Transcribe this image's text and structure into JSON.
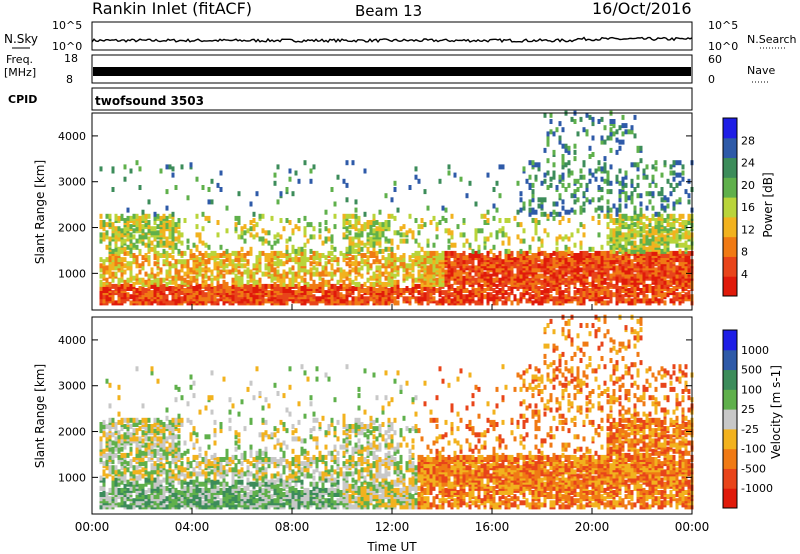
{
  "header": {
    "station": "Rankin Inlet (fitACF)",
    "beam": "Beam 13",
    "date": "16/Oct/2016"
  },
  "nsky_panel": {
    "label": "N.Sky",
    "left_ticks": [
      "10^5",
      "10^0"
    ],
    "right_ticks": [
      "10^5",
      "10^0"
    ],
    "right_label": "N.Search"
  },
  "freq_panel": {
    "label_line1": "Freq.",
    "label_line2": "[MHz]",
    "left_ticks": [
      "18",
      "8"
    ],
    "right_ticks": [
      "60",
      "0"
    ],
    "right_label": "Nave"
  },
  "cpid_panel": {
    "label": "CPID",
    "program": "twofsound 3503"
  },
  "colors": {
    "power_scale": [
      "#1e1ee6",
      "#2e5aa8",
      "#3c8c5a",
      "#5fb04b",
      "#b9d43a",
      "#f2b21e",
      "#f07a14",
      "#e8441a",
      "#e01a0a"
    ],
    "velocity_scale": [
      "#1e1ee6",
      "#2e5aa8",
      "#3c8c5a",
      "#5fb04b",
      "#c8c8c8",
      "#f2b21e",
      "#f07a14",
      "#e8441a",
      "#e01a0a"
    ]
  },
  "chart_data": [
    {
      "type": "heatmap",
      "name": "power",
      "ylabel": "Slant Range [km]",
      "ylim": [
        200,
        4500
      ],
      "yticks": [
        1000,
        2000,
        3000,
        4000
      ],
      "xlim": [
        0,
        24
      ],
      "colorbar": {
        "label": "Power [dB]",
        "ticks": [
          "28",
          "24",
          "20",
          "16",
          "12",
          "8",
          "4"
        ]
      }
    },
    {
      "type": "heatmap",
      "name": "velocity",
      "ylabel": "Slant Range [km]",
      "ylim": [
        200,
        4500
      ],
      "yticks": [
        1000,
        2000,
        3000,
        4000
      ],
      "xlim": [
        0,
        24
      ],
      "xlabel": "Time UT",
      "xticks": [
        "00:00",
        "04:00",
        "08:00",
        "12:00",
        "16:00",
        "20:00",
        "00:00"
      ],
      "colorbar": {
        "label": "Velocity [m s-1]",
        "ticks": [
          "1000",
          "500",
          "100",
          "25",
          "-25",
          "-100",
          "-500",
          "-1000"
        ]
      }
    }
  ]
}
